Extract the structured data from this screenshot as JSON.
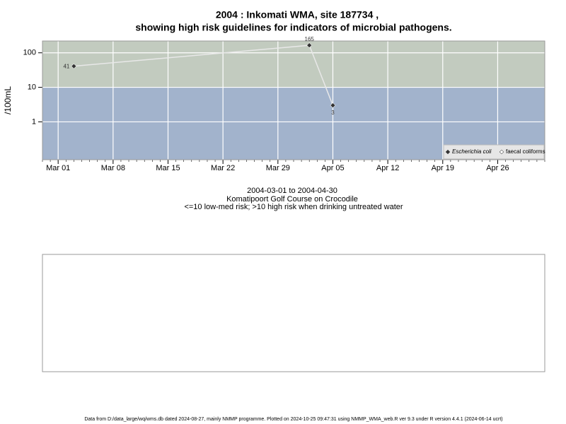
{
  "chart_data": {
    "type": "line",
    "title": "2004 : Inkomati WMA, site 187734 ,",
    "subtitle": "showing high risk guidelines for indicators of microbial pathogens.",
    "y_label": "/100mL",
    "x": [
      "2004-03-03",
      "2004-04-02",
      "2004-04-05"
    ],
    "series": [
      {
        "name": "Escherichia coli",
        "color": "#333333",
        "values": [
          41,
          165,
          3
        ]
      },
      {
        "name": "faecal coliforms",
        "color": "#ffffff",
        "values": [
          null,
          null,
          null
        ]
      }
    ],
    "xlim": [
      "2004-02-28",
      "2004-05-02"
    ],
    "xticks": [
      {
        "value": "2004-03-01",
        "label": "Mar 01"
      },
      {
        "value": "2004-03-08",
        "label": "Mar 08"
      },
      {
        "value": "2004-03-15",
        "label": "Mar 15"
      },
      {
        "value": "2004-03-22",
        "label": "Mar 22"
      },
      {
        "value": "2004-03-29",
        "label": "Mar 29"
      },
      {
        "value": "2004-04-05",
        "label": "Apr 05"
      },
      {
        "value": "2004-04-12",
        "label": "Apr 12"
      },
      {
        "value": "2004-04-19",
        "label": "Apr 19"
      },
      {
        "value": "2004-04-26",
        "label": "Apr 26"
      }
    ],
    "ylim": [
      0.08,
      220
    ],
    "yticks": [
      1,
      10,
      100
    ],
    "log_y": true,
    "grid": true,
    "guideline": 10,
    "high_risk_color": "#c2cbbf",
    "low_risk_color": "#a2b3cc",
    "legend": "bottom-right",
    "date_range": "2004-03-01 to 2004-04-30",
    "site_name": "Komatipoort Golf Course on Crocodile",
    "risk_note": "<=10 low-med risk; >10 high risk when drinking untreated water",
    "footer": "Data from D:/data_large/wq/wms.db dated 2024-08-27, mainly NMMP programme. Plotted on 2024-10-25 09:47:31 using NMMP_WMA_web.R ver 9.3 under R version 4.4.1 (2024-06-14 ucrt)"
  }
}
